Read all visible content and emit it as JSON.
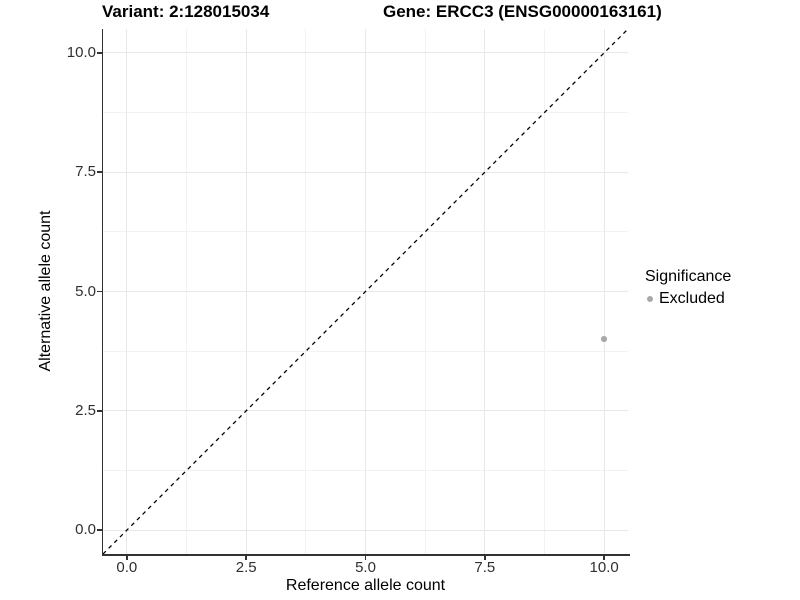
{
  "titles": {
    "variant": "Variant: 2:128015034",
    "gene": "Gene: ERCC3 (ENSG00000163161)"
  },
  "chart_data": {
    "type": "scatter",
    "title_left": "Variant: 2:128015034",
    "title_right": "Gene: ERCC3 (ENSG00000163161)",
    "xlabel": "Reference allele count",
    "ylabel": "Alternative allele count",
    "xlim": [
      -0.5,
      10.5
    ],
    "ylim": [
      -0.5,
      10.5
    ],
    "x_ticks": [
      0,
      2.5,
      5,
      7.5,
      10
    ],
    "x_tick_labels": [
      "0.0",
      "2.5",
      "5.0",
      "7.5",
      "10.0"
    ],
    "y_ticks": [
      0,
      2.5,
      5,
      7.5,
      10
    ],
    "y_tick_labels": [
      "0.0",
      "2.5",
      "5.0",
      "7.5",
      "10.0"
    ],
    "x_minor_ticks": [
      1.25,
      3.75,
      6.25,
      8.75
    ],
    "y_minor_ticks": [
      1.25,
      3.75,
      6.25,
      8.75
    ],
    "grid": true,
    "reference_line": {
      "type": "identity",
      "style": "dashed",
      "from": [
        -0.5,
        -0.5
      ],
      "to": [
        10.5,
        10.5
      ]
    },
    "series": [
      {
        "name": "Excluded",
        "points": [
          {
            "x": 10,
            "y": 4
          }
        ]
      }
    ],
    "legend": {
      "position": "right",
      "title": "Significance",
      "items": [
        {
          "label": "Excluded"
        }
      ]
    }
  },
  "colors": {
    "background": "#ffffff",
    "axis_line": "#333333",
    "tick": "#333333",
    "grid_major": "#e8e8e8",
    "grid_minor": "#f2f2f2",
    "identity_line": "#000000",
    "point": "#a9a9a9",
    "legend_key": "#a9a9a9",
    "text": "#000000"
  }
}
